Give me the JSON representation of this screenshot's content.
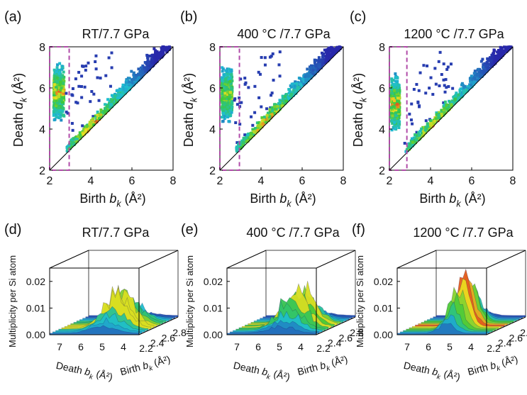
{
  "colors": {
    "pd_low": "#2a2ab0",
    "pd_mid": "#1ec8c8",
    "pd_high": "#e01e1e",
    "dashed_box": "#b04aa8",
    "surface_base": "#3a3ac0",
    "surface_top": "#d62020",
    "axis": "#000000"
  },
  "chart_data": [
    {
      "type": "scatter",
      "panel": "(a)",
      "title": "RT/7.7 GPa",
      "xlabel": "Birth b_k (Å²)",
      "ylabel": "Death d_k (Å²)",
      "xlim": [
        2,
        8
      ],
      "ylim": [
        2,
        8
      ],
      "xticks": [
        "2",
        "4",
        "6",
        "8"
      ],
      "yticks": [
        "2",
        "4",
        "6",
        "8"
      ],
      "dashed_box": {
        "x": [
          2.0,
          2.95
        ],
        "y": [
          2.0,
          8.0
        ]
      },
      "clusters": [
        {
          "name": "vertical band",
          "birth_range": [
            2.2,
            2.7
          ],
          "death_range": [
            3.0,
            7.9
          ],
          "peak_death": 5.8
        },
        {
          "name": "diagonal band",
          "birth_range": [
            2.8,
            8.0
          ],
          "offset": [
            0.0,
            1.2
          ],
          "peak_birth": 4.1
        }
      ]
    },
    {
      "type": "scatter",
      "panel": "(b)",
      "title": "400 °C /7.7 GPa",
      "xlabel": "Birth b_k (Å²)",
      "ylabel": "Death d_k (Å²)",
      "xlim": [
        2,
        8
      ],
      "ylim": [
        2,
        8
      ],
      "xticks": [
        "2",
        "4",
        "6",
        "8"
      ],
      "yticks": [
        "2",
        "4",
        "6",
        "8"
      ],
      "dashed_box": {
        "x": [
          2.0,
          2.95
        ],
        "y": [
          2.0,
          8.0
        ]
      },
      "clusters": [
        {
          "name": "vertical band",
          "birth_range": [
            2.1,
            2.6
          ],
          "death_range": [
            3.0,
            7.8
          ],
          "peak_death": 5.7
        },
        {
          "name": "diagonal band",
          "birth_range": [
            2.8,
            8.0
          ],
          "offset": [
            0.0,
            1.3
          ],
          "peak_birth": 4.2
        }
      ]
    },
    {
      "type": "scatter",
      "panel": "(c)",
      "title": "1200 °C /7.7 GPa",
      "xlabel": "Birth b_k (Å²)",
      "ylabel": "Death d_k (Å²)",
      "xlim": [
        2,
        8
      ],
      "ylim": [
        2,
        8
      ],
      "xticks": [
        "2",
        "4",
        "6",
        "8"
      ],
      "yticks": [
        "2",
        "4",
        "6",
        "8"
      ],
      "dashed_box": {
        "x": [
          2.0,
          2.85
        ],
        "y": [
          2.0,
          8.0
        ]
      },
      "clusters": [
        {
          "name": "vertical band",
          "birth_range": [
            2.1,
            2.5
          ],
          "death_range": [
            3.0,
            7.8
          ],
          "peak_death": 5.2
        },
        {
          "name": "diagonal band",
          "birth_range": [
            2.8,
            8.0
          ],
          "offset": [
            0.0,
            1.3
          ],
          "peak_birth": 4.1
        }
      ]
    },
    {
      "type": "area",
      "panel": "(d)",
      "title": "RT/7.7 GPa",
      "zlabel": "Multiplicity per Si atom",
      "xlabel": "Death b_k (Å²)",
      "ylabel": "Birth b_k (Å²)",
      "zticks": [
        "0.00",
        "0.01",
        "0.02"
      ],
      "death_ticks": [
        "7",
        "6",
        "5",
        "4"
      ],
      "birth_ticks": [
        "2.2",
        "2.4",
        "2.6",
        "2.8"
      ],
      "peak_multiplicity": 0.015
    },
    {
      "type": "area",
      "panel": "(e)",
      "title": "400 °C /7.7 GPa",
      "zlabel": "Multiplicity per Si atom",
      "xlabel": "Death b_k (Å²)",
      "ylabel": "Birth b_k (Å²)",
      "zticks": [
        "0.00",
        "0.01",
        "0.02"
      ],
      "death_ticks": [
        "7",
        "6",
        "5",
        "4"
      ],
      "birth_ticks": [
        "2.2",
        "2.4",
        "2.6",
        "2.8"
      ],
      "peak_multiplicity": 0.016
    },
    {
      "type": "area",
      "panel": "(f)",
      "title": "1200 °C /7.7 GPa",
      "zlabel": "Multiplicity per Si atom",
      "xlabel": "Death b_k (Å²)",
      "ylabel": "Birth b_k (Å²)",
      "zticks": [
        "0.00",
        "0.01",
        "0.02"
      ],
      "death_ticks": [
        "7",
        "6",
        "5",
        "4"
      ],
      "birth_ticks": [
        "2.2",
        "2.4",
        "2.6",
        "2.8"
      ],
      "peak_multiplicity": 0.023
    }
  ]
}
